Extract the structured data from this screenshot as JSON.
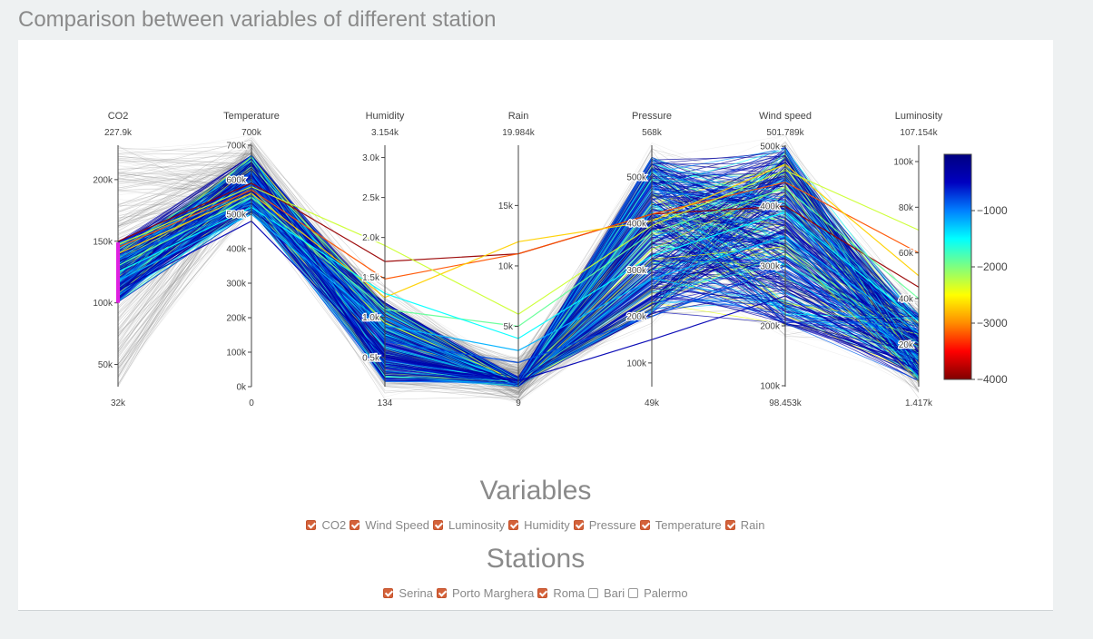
{
  "page": {
    "title": "Comparison between variables of different station"
  },
  "variables": {
    "title": "Variables",
    "items": [
      {
        "label": "CO2",
        "checked": true
      },
      {
        "label": "Wind Speed",
        "checked": true
      },
      {
        "label": "Luminosity",
        "checked": true
      },
      {
        "label": "Humidity",
        "checked": true
      },
      {
        "label": "Pressure",
        "checked": true
      },
      {
        "label": "Temperature",
        "checked": true
      },
      {
        "label": "Rain",
        "checked": true
      }
    ]
  },
  "stations": {
    "title": "Stations",
    "items": [
      {
        "label": "Serina",
        "checked": true
      },
      {
        "label": "Porto Marghera",
        "checked": true
      },
      {
        "label": "Roma",
        "checked": true
      },
      {
        "label": "Bari",
        "checked": false
      },
      {
        "label": "Palermo",
        "checked": false
      }
    ]
  },
  "colors": {
    "checkbox_accent": "#d4623a",
    "brush": "#e020e0",
    "filtered_line": "#888888"
  },
  "chart_data": {
    "type": "parallel-coordinates",
    "axes": [
      {
        "name": "CO2",
        "max_label": "227.9k",
        "min_label": "32k",
        "range": [
          32000,
          227900
        ],
        "ticks": [
          {
            "v": 50000,
            "l": "50k"
          },
          {
            "v": 100000,
            "l": "100k"
          },
          {
            "v": 150000,
            "l": "150k"
          },
          {
            "v": 200000,
            "l": "200k"
          }
        ],
        "brush": [
          100000,
          149000
        ]
      },
      {
        "name": "Temperature",
        "max_label": "700k",
        "min_label": "0",
        "range": [
          0,
          700000
        ],
        "ticks": [
          {
            "v": 0,
            "l": "0k"
          },
          {
            "v": 100000,
            "l": "100k"
          },
          {
            "v": 200000,
            "l": "200k"
          },
          {
            "v": 300000,
            "l": "300k"
          },
          {
            "v": 400000,
            "l": "400k"
          },
          {
            "v": 500000,
            "l": "500k"
          },
          {
            "v": 600000,
            "l": "600k"
          },
          {
            "v": 700000,
            "l": "700k"
          }
        ]
      },
      {
        "name": "Humidity",
        "max_label": "3.154k",
        "min_label": "134",
        "range": [
          134,
          3154
        ],
        "ticks": [
          {
            "v": 500,
            "l": "0.5k"
          },
          {
            "v": 1000,
            "l": "1.0k"
          },
          {
            "v": 1500,
            "l": "1.5k"
          },
          {
            "v": 2000,
            "l": "2.0k"
          },
          {
            "v": 2500,
            "l": "2.5k"
          },
          {
            "v": 3000,
            "l": "3.0k"
          }
        ]
      },
      {
        "name": "Rain",
        "max_label": "19.984k",
        "min_label": "9",
        "range": [
          9,
          19984
        ],
        "ticks": [
          {
            "v": 5000,
            "l": "5k"
          },
          {
            "v": 10000,
            "l": "10k"
          },
          {
            "v": 15000,
            "l": "15k"
          }
        ]
      },
      {
        "name": "Pressure",
        "max_label": "568k",
        "min_label": "49k",
        "range": [
          49000,
          568000
        ],
        "ticks": [
          {
            "v": 100000,
            "l": "100k"
          },
          {
            "v": 200000,
            "l": "200k"
          },
          {
            "v": 300000,
            "l": "300k"
          },
          {
            "v": 400000,
            "l": "400k"
          },
          {
            "v": 500000,
            "l": "500k"
          }
        ]
      },
      {
        "name": "Wind speed",
        "max_label": "501.789k",
        "min_label": "98.453k",
        "range": [
          98453,
          501789
        ],
        "ticks": [
          {
            "v": 100000,
            "l": "100k"
          },
          {
            "v": 200000,
            "l": "200k"
          },
          {
            "v": 300000,
            "l": "300k"
          },
          {
            "v": 400000,
            "l": "400k"
          },
          {
            "v": 500000,
            "l": "500k"
          }
        ]
      },
      {
        "name": "Luminosity",
        "max_label": "107.154k",
        "min_label": "1.417k",
        "range": [
          1417,
          107154
        ],
        "ticks": [
          {
            "v": 20000,
            "l": "20k"
          },
          {
            "v": 40000,
            "l": "40k"
          },
          {
            "v": 60000,
            "l": "60k"
          },
          {
            "v": 80000,
            "l": "80k"
          },
          {
            "v": 100000,
            "l": "100k"
          }
        ]
      }
    ],
    "colorbar": {
      "range": [
        -4000,
        0
      ],
      "ticks": [
        {
          "v": -1000,
          "l": "−1000"
        },
        {
          "v": -2000,
          "l": "−2000"
        },
        {
          "v": -3000,
          "l": "−3000"
        },
        {
          "v": -4000,
          "l": "−4000"
        }
      ],
      "colorscale": [
        "#800000",
        "#ff0000",
        "#ff8c00",
        "#ffff00",
        "#7fff7f",
        "#00ffff",
        "#007fff",
        "#0000c0",
        "#000080"
      ]
    },
    "highlighted_lines": [
      {
        "values": [
          150000,
          590000,
          1700,
          11000,
          420000,
          400000,
          45000
        ],
        "color": -3900
      },
      {
        "values": [
          145000,
          570000,
          1480,
          11000,
          420000,
          440000,
          60000
        ],
        "color": -3200
      },
      {
        "values": [
          140000,
          560000,
          1250,
          12000,
          405000,
          470000,
          50000
        ],
        "color": -2700
      },
      {
        "values": [
          147000,
          580000,
          1900,
          6000,
          395000,
          460000,
          70000
        ],
        "color": -2300
      },
      {
        "values": [
          130000,
          550000,
          1100,
          5000,
          380000,
          430000,
          40000
        ],
        "color": -1900
      },
      {
        "values": [
          125000,
          520000,
          1300,
          4000,
          330000,
          390000,
          30000
        ],
        "color": -1500
      },
      {
        "values": [
          118000,
          500000,
          900,
          3000,
          280000,
          350000,
          25000
        ],
        "color": -1200
      },
      {
        "values": [
          135000,
          540000,
          700,
          2000,
          200000,
          300000,
          15000
        ],
        "color": -800
      },
      {
        "values": [
          110000,
          480000,
          500,
          500,
          150000,
          250000,
          8000
        ],
        "color": -400
      }
    ]
  }
}
